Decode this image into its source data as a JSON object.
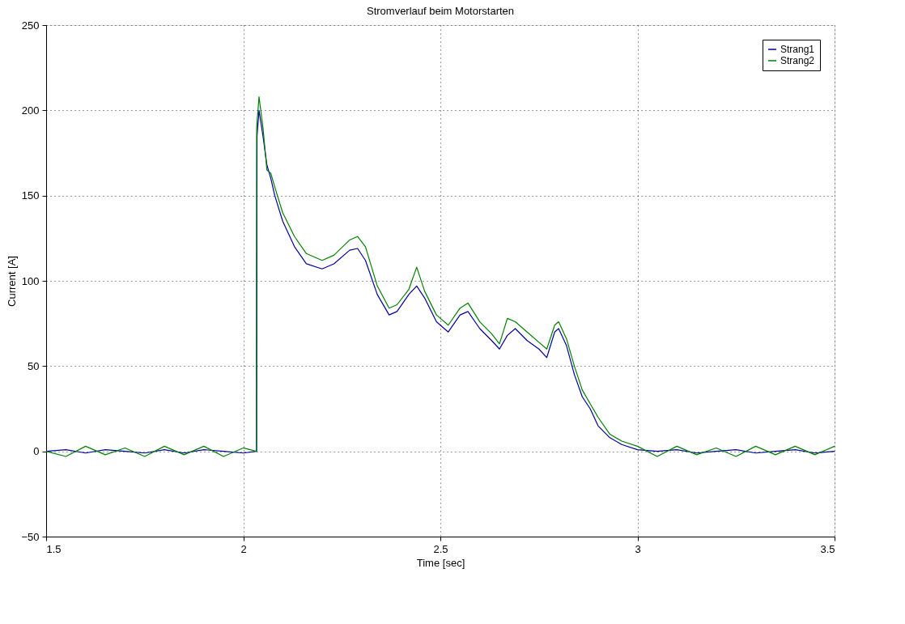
{
  "chart_data": {
    "type": "line",
    "title": "Stromverlauf beim Motorstarten",
    "xlabel": "Time [sec]",
    "ylabel": "Current [A]",
    "xlim": [
      1.5,
      3.5
    ],
    "xticks": [
      1.5,
      2,
      2.5,
      3,
      3.5
    ],
    "ylim": [
      -50,
      250
    ],
    "yticks": [
      -50,
      0,
      50,
      100,
      150,
      200,
      250
    ],
    "grid": true,
    "legend": "top right",
    "marker": "none",
    "line_style": "solid",
    "series": [
      {
        "name": "Strang1",
        "color": "#0000a0",
        "x": [
          1.5,
          1.55,
          1.6,
          1.65,
          1.7,
          1.75,
          1.8,
          1.85,
          1.9,
          1.95,
          2.0,
          2.034,
          2.035,
          2.04,
          2.05,
          2.06,
          2.07,
          2.08,
          2.1,
          2.13,
          2.16,
          2.2,
          2.23,
          2.27,
          2.29,
          2.31,
          2.34,
          2.37,
          2.39,
          2.42,
          2.44,
          2.46,
          2.49,
          2.52,
          2.55,
          2.57,
          2.6,
          2.63,
          2.65,
          2.67,
          2.69,
          2.72,
          2.75,
          2.77,
          2.79,
          2.8,
          2.82,
          2.84,
          2.86,
          2.88,
          2.9,
          2.93,
          2.96,
          3.0,
          3.05,
          3.1,
          3.15,
          3.2,
          3.25,
          3.3,
          3.35,
          3.4,
          3.45,
          3.5
        ],
        "values": [
          0,
          1,
          -1,
          1,
          0,
          -1,
          1,
          -1,
          1,
          0,
          -1,
          0,
          185,
          200,
          185,
          168,
          160,
          150,
          135,
          120,
          110,
          107,
          110,
          118,
          119,
          112,
          92,
          80,
          82,
          92,
          97,
          90,
          76,
          70,
          80,
          82,
          72,
          65,
          60,
          68,
          72,
          65,
          60,
          55,
          70,
          72,
          62,
          45,
          32,
          25,
          15,
          8,
          4,
          1,
          0,
          1,
          -1,
          0,
          1,
          -1,
          0,
          1,
          -1,
          0
        ]
      },
      {
        "name": "Strang2",
        "color": "#008000",
        "x": [
          1.5,
          1.55,
          1.6,
          1.65,
          1.7,
          1.75,
          1.8,
          1.85,
          1.9,
          1.95,
          2.0,
          2.033,
          2.034,
          2.04,
          2.05,
          2.06,
          2.07,
          2.08,
          2.1,
          2.13,
          2.16,
          2.2,
          2.23,
          2.27,
          2.29,
          2.31,
          2.34,
          2.37,
          2.39,
          2.42,
          2.44,
          2.46,
          2.49,
          2.52,
          2.55,
          2.57,
          2.6,
          2.63,
          2.65,
          2.67,
          2.69,
          2.72,
          2.75,
          2.77,
          2.79,
          2.8,
          2.82,
          2.84,
          2.86,
          2.88,
          2.9,
          2.93,
          2.96,
          3.0,
          3.05,
          3.1,
          3.15,
          3.2,
          3.25,
          3.3,
          3.35,
          3.4,
          3.45,
          3.5
        ],
        "values": [
          0,
          -3,
          3,
          -2,
          2,
          -3,
          3,
          -2,
          3,
          -3,
          2,
          0,
          190,
          208,
          190,
          165,
          163,
          155,
          140,
          126,
          116,
          112,
          115,
          124,
          126,
          120,
          97,
          84,
          86,
          95,
          108,
          94,
          80,
          74,
          84,
          87,
          76,
          69,
          63,
          78,
          76,
          70,
          64,
          60,
          74,
          76,
          66,
          50,
          36,
          28,
          20,
          10,
          6,
          3,
          -3,
          3,
          -2,
          2,
          -3,
          3,
          -2,
          3,
          -2,
          3
        ]
      }
    ]
  }
}
